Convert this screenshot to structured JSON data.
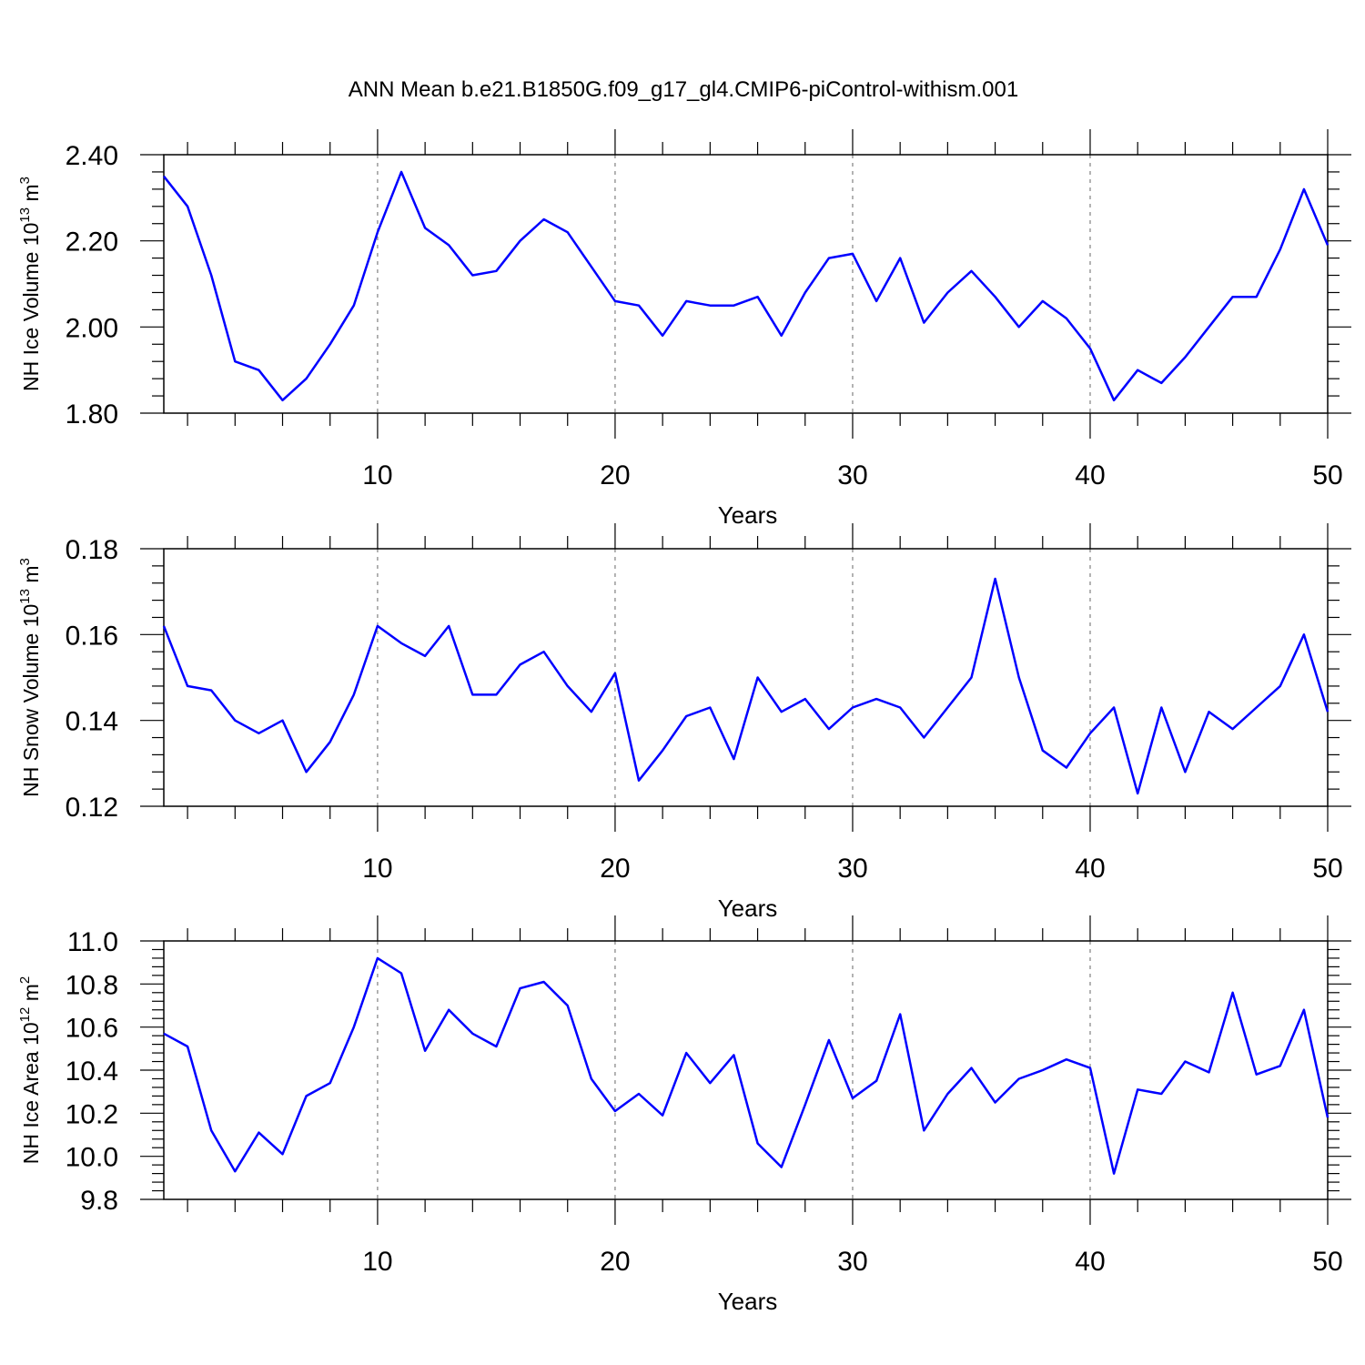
{
  "title": "ANN Mean b.e21.B1850G.f09_g17_gl4.CMIP6-piControl-withism.001",
  "colors": {
    "line": "#0000ff",
    "grid": "#808080",
    "frame": "#000000"
  },
  "chart_data": [
    {
      "type": "line",
      "xlabel": "Years",
      "ylabel_main": "NH Ice Volume 10",
      "ylabel_sup1": "13",
      "ylabel_mid": " m",
      "ylabel_sup2": "3",
      "xlim": [
        1,
        50
      ],
      "ylim": [
        1.8,
        2.4
      ],
      "x_ticks": [
        "10",
        "20",
        "30",
        "40",
        "50"
      ],
      "y_ticks": [
        "1.80",
        "2.00",
        "2.20",
        "2.40"
      ],
      "grid": "vertical dashed at 10, 20, 30, 40",
      "x": [
        1,
        2,
        3,
        4,
        5,
        6,
        7,
        8,
        9,
        10,
        11,
        12,
        13,
        14,
        15,
        16,
        17,
        18,
        19,
        20,
        21,
        22,
        23,
        24,
        25,
        26,
        27,
        28,
        29,
        30,
        31,
        32,
        33,
        34,
        35,
        36,
        37,
        38,
        39,
        40,
        41,
        42,
        43,
        44,
        45,
        46,
        47,
        48,
        49,
        50
      ],
      "values": [
        2.35,
        2.28,
        2.12,
        1.92,
        1.9,
        1.83,
        1.88,
        1.96,
        2.05,
        2.22,
        2.36,
        2.23,
        2.19,
        2.12,
        2.13,
        2.2,
        2.25,
        2.22,
        2.14,
        2.06,
        2.05,
        1.98,
        2.06,
        2.05,
        2.05,
        2.07,
        1.98,
        2.08,
        2.16,
        2.17,
        2.06,
        2.16,
        2.01,
        2.08,
        2.13,
        2.07,
        2.0,
        2.06,
        2.02,
        1.95,
        1.83,
        1.9,
        1.87,
        1.93,
        2.0,
        2.07,
        2.07,
        2.18,
        2.32,
        2.19
      ]
    },
    {
      "type": "line",
      "xlabel": "Years",
      "ylabel_main": "NH Snow Volume 10",
      "ylabel_sup1": "13",
      "ylabel_mid": " m",
      "ylabel_sup2": "3",
      "xlim": [
        1,
        50
      ],
      "ylim": [
        0.12,
        0.18
      ],
      "x_ticks": [
        "10",
        "20",
        "30",
        "40",
        "50"
      ],
      "y_ticks": [
        "0.12",
        "0.14",
        "0.16",
        "0.18"
      ],
      "grid": "vertical dashed at 10, 20, 30, 40",
      "x": [
        1,
        2,
        3,
        4,
        5,
        6,
        7,
        8,
        9,
        10,
        11,
        12,
        13,
        14,
        15,
        16,
        17,
        18,
        19,
        20,
        21,
        22,
        23,
        24,
        25,
        26,
        27,
        28,
        29,
        30,
        31,
        32,
        33,
        34,
        35,
        36,
        37,
        38,
        39,
        40,
        41,
        42,
        43,
        44,
        45,
        46,
        47,
        48,
        49,
        50
      ],
      "values": [
        0.162,
        0.148,
        0.147,
        0.14,
        0.137,
        0.14,
        0.128,
        0.135,
        0.146,
        0.162,
        0.158,
        0.155,
        0.162,
        0.146,
        0.146,
        0.153,
        0.156,
        0.148,
        0.142,
        0.151,
        0.126,
        0.133,
        0.141,
        0.143,
        0.131,
        0.15,
        0.142,
        0.145,
        0.138,
        0.143,
        0.145,
        0.143,
        0.136,
        0.143,
        0.15,
        0.173,
        0.15,
        0.133,
        0.129,
        0.137,
        0.143,
        0.123,
        0.143,
        0.128,
        0.142,
        0.138,
        0.143,
        0.148,
        0.16,
        0.142
      ]
    },
    {
      "type": "line",
      "xlabel": "Years",
      "ylabel_main": "NH Ice Area 10",
      "ylabel_sup1": "12",
      "ylabel_mid": " m",
      "ylabel_sup2": "2",
      "xlim": [
        1,
        50
      ],
      "ylim": [
        9.8,
        11.0
      ],
      "x_ticks": [
        "10",
        "20",
        "30",
        "40",
        "50"
      ],
      "y_ticks": [
        "9.8",
        "10.0",
        "10.2",
        "10.4",
        "10.6",
        "10.8",
        "11.0"
      ],
      "grid": "vertical dashed at 10, 20, 30, 40",
      "x": [
        1,
        2,
        3,
        4,
        5,
        6,
        7,
        8,
        9,
        10,
        11,
        12,
        13,
        14,
        15,
        16,
        17,
        18,
        19,
        20,
        21,
        22,
        23,
        24,
        25,
        26,
        27,
        28,
        29,
        30,
        31,
        32,
        33,
        34,
        35,
        36,
        37,
        38,
        39,
        40,
        41,
        42,
        43,
        44,
        45,
        46,
        47,
        48,
        49,
        50
      ],
      "values": [
        10.57,
        10.51,
        10.12,
        9.93,
        10.11,
        10.01,
        10.28,
        10.34,
        10.6,
        10.92,
        10.85,
        10.49,
        10.68,
        10.57,
        10.51,
        10.78,
        10.81,
        10.7,
        10.36,
        10.21,
        10.29,
        10.19,
        10.48,
        10.34,
        10.47,
        10.06,
        9.95,
        10.24,
        10.54,
        10.27,
        10.35,
        10.66,
        10.12,
        10.29,
        10.41,
        10.25,
        10.36,
        10.4,
        10.45,
        10.41,
        9.92,
        10.31,
        10.29,
        10.44,
        10.39,
        10.76,
        10.38,
        10.42,
        10.68,
        10.18
      ]
    }
  ]
}
